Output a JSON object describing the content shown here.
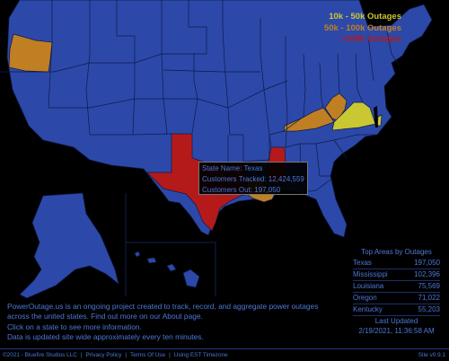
{
  "colors": {
    "background": "#000000",
    "no_data": "#2c49a9",
    "water_inset": "#050505",
    "tier_10k_50k": "#c9c832",
    "tier_50k_100k": "#c07f23",
    "tier_100k_plus": "#b51a1b",
    "text": "#4d78d6"
  },
  "legend": [
    {
      "label": "10k - 50k Outages",
      "color": "#c9c832"
    },
    {
      "label": "50k - 100k Outages",
      "color": "#c07f23"
    },
    {
      "label": ">100k Outages",
      "color": "#b51a1b"
    }
  ],
  "highlighted_states": {
    "texas": "100k+",
    "mississippi": "100k+",
    "louisiana": "50k-100k",
    "oregon": "50k-100k",
    "kentucky": "50k-100k",
    "west_virginia": "50k-100k",
    "virginia": "10k-50k"
  },
  "tooltip": {
    "state_name": "State Name: Texas",
    "customers_tracked": "Customers Tracked: 12,424,559",
    "customers_out": "Customers Out: 197,050"
  },
  "info": {
    "line1": "PowerOutage.us is an ongoing project created to track, record, and aggregate power outages",
    "line2": "across the united states. Find out more on our About page.",
    "line3": "Click on a state to see more information.",
    "line4": "Data is updated site wide approximately every ten minutes."
  },
  "top_areas": {
    "title": "Top Areas by Outages",
    "rows": [
      {
        "name": "Texas",
        "value": "197,050"
      },
      {
        "name": "Mississippi",
        "value": "102,396"
      },
      {
        "name": "Louisiana",
        "value": "75,569"
      },
      {
        "name": "Oregon",
        "value": "71,022"
      },
      {
        "name": "Kentucky",
        "value": "55,203"
      }
    ],
    "last_updated_label": "Last Updated",
    "last_updated_value": "2/19/2021, 11:36:58 AM"
  },
  "footer": {
    "copyright": "©2021 - Bluefire Studios LLC",
    "privacy": "Privacy Policy",
    "terms": "Terms Of Use",
    "timezone": "Using EST Timezone",
    "version": "Site v0.9.1"
  }
}
